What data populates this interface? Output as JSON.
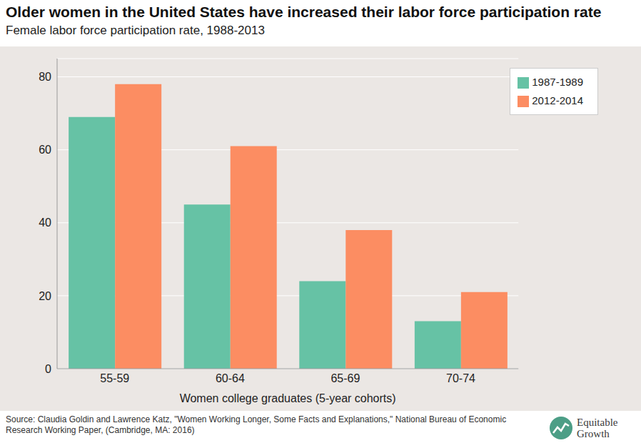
{
  "chart_data": {
    "type": "bar",
    "title": "Older women in the United States have increased their labor force participation rate",
    "subtitle": "Female labor force participation rate, 1988-2013",
    "x_label": "Women college graduates (5-year cohorts)",
    "categories": [
      "55-59",
      "60-64",
      "65-69",
      "70-74"
    ],
    "series": [
      {
        "name": "1987-1989",
        "color": "#66c2a5",
        "values": [
          69,
          45,
          24,
          13
        ]
      },
      {
        "name": "2012-2014",
        "color": "#fc8d62",
        "values": [
          78,
          61,
          38,
          21
        ]
      }
    ],
    "ylim": [
      0,
      85
    ],
    "yticks": [
      0,
      20,
      40,
      60,
      80
    ],
    "grid": true,
    "legend": "upper right",
    "source": "Source: Claudia Goldin and Lawrence Katz, \"Women Working Longer, Some Facts and Explanations,\" National Bureau of Economic Research Working Paper, (Cambridge, MA: 2016)",
    "brand": "Equitable Growth"
  }
}
